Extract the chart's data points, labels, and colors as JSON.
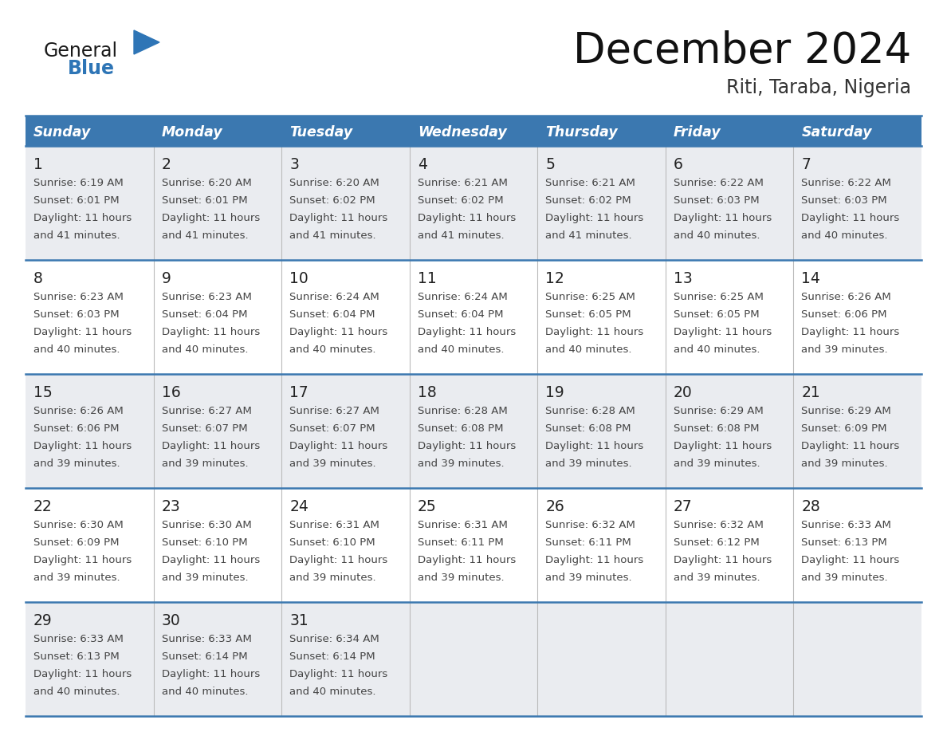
{
  "title": "December 2024",
  "subtitle": "Riti, Taraba, Nigeria",
  "header_color": "#3b78b0",
  "header_text_color": "#FFFFFF",
  "day_names": [
    "Sunday",
    "Monday",
    "Tuesday",
    "Wednesday",
    "Thursday",
    "Friday",
    "Saturday"
  ],
  "bg_color": "#FFFFFF",
  "cell_bg_even": "#EAECF0",
  "cell_bg_odd": "#FFFFFF",
  "grid_line_color": "#3b78b0",
  "logo_general_color": "#1a1a1a",
  "logo_blue_color": "#2E75B6",
  "logo_triangle_color": "#2E75B6",
  "calendar_data": [
    [
      {
        "day": 1,
        "sunrise": "6:19 AM",
        "sunset": "6:01 PM",
        "daylight": "11 hours and 41 minutes."
      },
      {
        "day": 2,
        "sunrise": "6:20 AM",
        "sunset": "6:01 PM",
        "daylight": "11 hours and 41 minutes."
      },
      {
        "day": 3,
        "sunrise": "6:20 AM",
        "sunset": "6:02 PM",
        "daylight": "11 hours and 41 minutes."
      },
      {
        "day": 4,
        "sunrise": "6:21 AM",
        "sunset": "6:02 PM",
        "daylight": "11 hours and 41 minutes."
      },
      {
        "day": 5,
        "sunrise": "6:21 AM",
        "sunset": "6:02 PM",
        "daylight": "11 hours and 41 minutes."
      },
      {
        "day": 6,
        "sunrise": "6:22 AM",
        "sunset": "6:03 PM",
        "daylight": "11 hours and 40 minutes."
      },
      {
        "day": 7,
        "sunrise": "6:22 AM",
        "sunset": "6:03 PM",
        "daylight": "11 hours and 40 minutes."
      }
    ],
    [
      {
        "day": 8,
        "sunrise": "6:23 AM",
        "sunset": "6:03 PM",
        "daylight": "11 hours and 40 minutes."
      },
      {
        "day": 9,
        "sunrise": "6:23 AM",
        "sunset": "6:04 PM",
        "daylight": "11 hours and 40 minutes."
      },
      {
        "day": 10,
        "sunrise": "6:24 AM",
        "sunset": "6:04 PM",
        "daylight": "11 hours and 40 minutes."
      },
      {
        "day": 11,
        "sunrise": "6:24 AM",
        "sunset": "6:04 PM",
        "daylight": "11 hours and 40 minutes."
      },
      {
        "day": 12,
        "sunrise": "6:25 AM",
        "sunset": "6:05 PM",
        "daylight": "11 hours and 40 minutes."
      },
      {
        "day": 13,
        "sunrise": "6:25 AM",
        "sunset": "6:05 PM",
        "daylight": "11 hours and 40 minutes."
      },
      {
        "day": 14,
        "sunrise": "6:26 AM",
        "sunset": "6:06 PM",
        "daylight": "11 hours and 39 minutes."
      }
    ],
    [
      {
        "day": 15,
        "sunrise": "6:26 AM",
        "sunset": "6:06 PM",
        "daylight": "11 hours and 39 minutes."
      },
      {
        "day": 16,
        "sunrise": "6:27 AM",
        "sunset": "6:07 PM",
        "daylight": "11 hours and 39 minutes."
      },
      {
        "day": 17,
        "sunrise": "6:27 AM",
        "sunset": "6:07 PM",
        "daylight": "11 hours and 39 minutes."
      },
      {
        "day": 18,
        "sunrise": "6:28 AM",
        "sunset": "6:08 PM",
        "daylight": "11 hours and 39 minutes."
      },
      {
        "day": 19,
        "sunrise": "6:28 AM",
        "sunset": "6:08 PM",
        "daylight": "11 hours and 39 minutes."
      },
      {
        "day": 20,
        "sunrise": "6:29 AM",
        "sunset": "6:08 PM",
        "daylight": "11 hours and 39 minutes."
      },
      {
        "day": 21,
        "sunrise": "6:29 AM",
        "sunset": "6:09 PM",
        "daylight": "11 hours and 39 minutes."
      }
    ],
    [
      {
        "day": 22,
        "sunrise": "6:30 AM",
        "sunset": "6:09 PM",
        "daylight": "11 hours and 39 minutes."
      },
      {
        "day": 23,
        "sunrise": "6:30 AM",
        "sunset": "6:10 PM",
        "daylight": "11 hours and 39 minutes."
      },
      {
        "day": 24,
        "sunrise": "6:31 AM",
        "sunset": "6:10 PM",
        "daylight": "11 hours and 39 minutes."
      },
      {
        "day": 25,
        "sunrise": "6:31 AM",
        "sunset": "6:11 PM",
        "daylight": "11 hours and 39 minutes."
      },
      {
        "day": 26,
        "sunrise": "6:32 AM",
        "sunset": "6:11 PM",
        "daylight": "11 hours and 39 minutes."
      },
      {
        "day": 27,
        "sunrise": "6:32 AM",
        "sunset": "6:12 PM",
        "daylight": "11 hours and 39 minutes."
      },
      {
        "day": 28,
        "sunrise": "6:33 AM",
        "sunset": "6:13 PM",
        "daylight": "11 hours and 39 minutes."
      }
    ],
    [
      {
        "day": 29,
        "sunrise": "6:33 AM",
        "sunset": "6:13 PM",
        "daylight": "11 hours and 40 minutes."
      },
      {
        "day": 30,
        "sunrise": "6:33 AM",
        "sunset": "6:14 PM",
        "daylight": "11 hours and 40 minutes."
      },
      {
        "day": 31,
        "sunrise": "6:34 AM",
        "sunset": "6:14 PM",
        "daylight": "11 hours and 40 minutes."
      },
      null,
      null,
      null,
      null
    ]
  ]
}
